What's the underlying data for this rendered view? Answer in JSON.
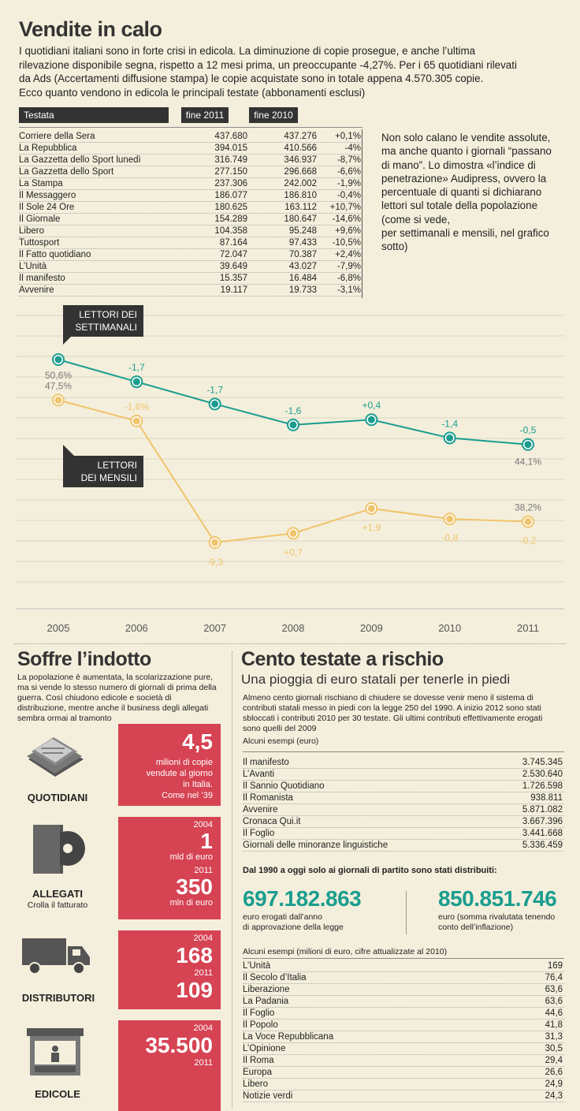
{
  "header": {
    "title": "Vendite in calo",
    "intro": [
      "I quotidiani italiani sono in forte crisi in edicola. La diminuzione di copie prosegue, e anche l’ultima",
      "rilevazione disponibile segna, rispetto a 12 mesi prima,  un preoccupante -4,27%. Per i 65 quotidiani rilevati",
      "da Ads (Accertamenti diffusione stampa) le copie acquistate sono in totale appena 4.570.305 copie.",
      "Ecco quanto vendono in edicola le principali testate (abbonamenti esclusi)"
    ]
  },
  "sales_table": {
    "headers": [
      "Testata",
      "fine 2011",
      "fine 2010"
    ],
    "rows": [
      {
        "name": "Corriere della Sera",
        "y2011": "437.680",
        "y2010": "437.276",
        "diff": "+0,1%"
      },
      {
        "name": "La Repubblica",
        "y2011": "394.015",
        "y2010": "410.566",
        "diff": "-4%"
      },
      {
        "name": "La Gazzetta dello Sport lunedì",
        "y2011": "316.749",
        "y2010": "346.937",
        "diff": "-8,7%"
      },
      {
        "name": "La Gazzetta dello Sport",
        "y2011": "277.150",
        "y2010": "296.668",
        "diff": "-6,6%"
      },
      {
        "name": "La Stampa",
        "y2011": "237.306",
        "y2010": "242.002",
        "diff": "-1,9%"
      },
      {
        "name": "Il Messaggero",
        "y2011": "186.077",
        "y2010": "186.810",
        "diff": "-0,4%"
      },
      {
        "name": "Il Sole 24 Ore",
        "y2011": "180.625",
        "y2010": "163.112",
        "diff": "+10,7%"
      },
      {
        "name": "Il Giornale",
        "y2011": "154.289",
        "y2010": "180.647",
        "diff": "-14,6%"
      },
      {
        "name": "Libero",
        "y2011": "104.358",
        "y2010": "95.248",
        "diff": "+9,6%"
      },
      {
        "name": "Tuttosport",
        "y2011": "87.164",
        "y2010": "97.433",
        "diff": "-10,5%"
      },
      {
        "name": "Il Fatto quotidiano",
        "y2011": "72.047",
        "y2010": "70.387",
        "diff": "+2,4%"
      },
      {
        "name": "L’Unità",
        "y2011": "39.649",
        "y2010": "43.027",
        "diff": "-7,9%"
      },
      {
        "name": "Il manifesto",
        "y2011": "15.357",
        "y2010": "16.484",
        "diff": "-6,8%"
      },
      {
        "name": "Avvenire",
        "y2011": "19.117",
        "y2010": "19.733",
        "diff": "-3,1%"
      }
    ]
  },
  "side_note": [
    "Non solo calano le vendite assolute,",
    "ma anche quanto i giornali “passano",
    "di mano”. Lo dimostra «l’indice di",
    "penetrazione» Audipress, ovvero la",
    "percentuale di quanti si dichiarano",
    "lettori sul totale della popolazione",
    "(come si vede,",
    "per settimanali e mensili, nel grafico",
    "sotto)"
  ],
  "chart_data": {
    "type": "line",
    "title": "",
    "x": [
      "2005",
      "2006",
      "2007",
      "2008",
      "2009",
      "2010",
      "2011"
    ],
    "series": [
      {
        "name": "LETTORI DEI SETTIMANALI",
        "name_lines": [
          "LETTORI DEI",
          "SETTIMANALI"
        ],
        "color": "#1a9d8f",
        "values": [
          50.6,
          48.9,
          47.2,
          45.6,
          46.0,
          44.6,
          44.1
        ],
        "labels": [
          "50,6%",
          "-1,7",
          "-1,7",
          "-1,6",
          "+0,4",
          "-1,4",
          "-0,5"
        ],
        "end_label": "44,1%"
      },
      {
        "name": "LETTORI DEI MENSILI",
        "name_lines": [
          "LETTORI",
          "DEI MENSILI"
        ],
        "color": "#f0c46c",
        "values": [
          47.5,
          45.9,
          36.6,
          37.3,
          39.2,
          38.4,
          38.2
        ],
        "labels": [
          "47,5%",
          "-1,6%",
          "-9,3",
          "+0,7",
          "+1,9",
          "-0,8",
          "-0,2"
        ],
        "end_label": "38,2%"
      }
    ],
    "grid": true
  },
  "indotto": {
    "title": "Soffre l’indotto",
    "intro": [
      "La popolazione è aumentata, la scolarizzazione pure,",
      "ma si vende lo stesso numero di giornali di prima della",
      "guerra. Così chiudono edicole e società di",
      "distribuzione, mentre anche il business degli allegati",
      "sembra ormai al tramonto"
    ],
    "categories": [
      {
        "name": "QUOTIDIANI",
        "sub": "",
        "icon": "newspaper-icon"
      },
      {
        "name": "ALLEGATI",
        "sub": "Crolla il fatturato",
        "icon": "dvd-box-icon"
      },
      {
        "name": "DISTRIBUTORI",
        "sub": "",
        "icon": "truck-icon"
      },
      {
        "name": "EDICOLE",
        "sub": "",
        "icon": "kiosk-icon"
      }
    ],
    "quotidiani": {
      "value": "4,5",
      "text": [
        "milioni di copie",
        "vendute al giorno",
        "in Italia.",
        "Come nel ’39"
      ]
    },
    "allegati": {
      "year1": "2004",
      "value1": "1",
      "unit1": "mld di euro",
      "year2": "2011",
      "value2": "350",
      "unit2": "mln di euro"
    },
    "distributori": {
      "year1": "2004",
      "value1": "168",
      "year2": "2011",
      "value2": "109"
    },
    "edicole": {
      "year1": "2004",
      "value1": "35.500",
      "year2": "2011"
    }
  },
  "cento": {
    "title": "Cento testate a rischio",
    "subtitle": "Una pioggia di euro statali per tenerle in piedi",
    "intro": [
      "Almeno cento giornali rischiano di chiudere se dovesse venir meno il sistema di",
      "contributi statali messo in piedi con la legge 250 del 1990. A inizio 2012 sono stati",
      "sbloccati i contributi 2010 per 30 testate. Gli ultimi contributi effettivamente erogati",
      "sono quelli del 2009"
    ],
    "examples_label": "Alcuni esempi (euro)",
    "examples": [
      {
        "name": "Il manifesto",
        "value": "3.745.345"
      },
      {
        "name": "L’Avanti",
        "value": "2.530.640"
      },
      {
        "name": "Il Sannio Quotidiano",
        "value": "1.726.598"
      },
      {
        "name": "Il Romanista",
        "value": "938.811"
      },
      {
        "name": "Avvenire",
        "value": "5.871.082"
      },
      {
        "name": "Cronaca Qui.it",
        "value": "3.667.396"
      },
      {
        "name": "Il Foglio",
        "value": "3.441.668"
      },
      {
        "name": "Giornali delle minoranze linguistiche",
        "value": "5.336.459"
      }
    ],
    "party_heading": "Dal 1990 a oggi solo ai giornali di partito sono stati distribuiti:",
    "total1": {
      "value": "697.182.863",
      "text": [
        "euro erogati dall’anno",
        "di approvazione della legge"
      ]
    },
    "total2": {
      "value": "850.851.746",
      "text": [
        "euro (somma rivalutata tenendo",
        "conto dell’inflazione)"
      ]
    },
    "examples2_label": "Alcuni esempi (milioni di euro, cifre attualizzate al 2010)",
    "examples2": [
      {
        "name": "L’Unità",
        "value": "169"
      },
      {
        "name": "Il Secolo d’Italia",
        "value": "76,4"
      },
      {
        "name": "Liberazione",
        "value": "63,6"
      },
      {
        "name": "La Padania",
        "value": "63,6"
      },
      {
        "name": "Il Foglio",
        "value": "44,6"
      },
      {
        "name": "Il Popolo",
        "value": "41,8"
      },
      {
        "name": "La Voce Repubblicana",
        "value": "31,3"
      },
      {
        "name": "L’Opinione",
        "value": "30,5"
      },
      {
        "name": "Il Roma",
        "value": "29,4"
      },
      {
        "name": "Europa",
        "value": "26,6"
      },
      {
        "name": "Libero",
        "value": "24,9"
      },
      {
        "name": "Notizie verdi",
        "value": "24,3"
      }
    ]
  }
}
